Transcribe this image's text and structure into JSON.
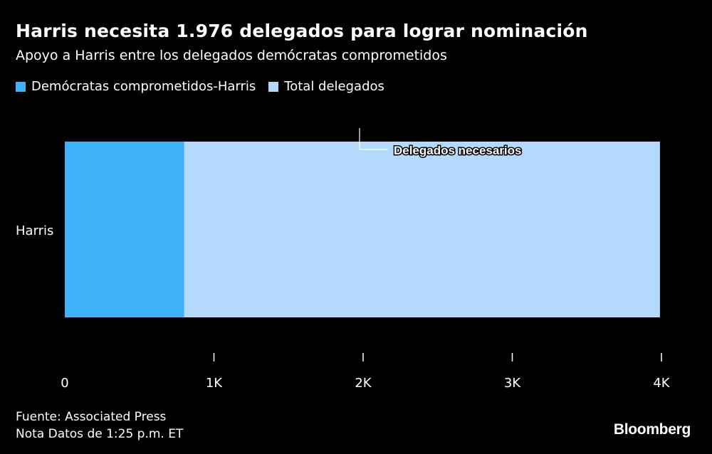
{
  "chart_data": {
    "type": "bar",
    "title": "Harris necesita 1.976 delegados para lograr nominación",
    "subtitle": "Apoyo a Harris entre los delegados demócratas comprometidos",
    "categories": [
      "Harris"
    ],
    "series": [
      {
        "name": "Demócratas comprometidos-Harris",
        "values": [
          800
        ],
        "color": "#3fb3f9"
      },
      {
        "name": "Total delegados",
        "values": [
          3990
        ],
        "color": "#b3dafd"
      }
    ],
    "xlim": [
      0,
      4000
    ],
    "xticks": [
      0,
      1000,
      2000,
      3000,
      4000
    ],
    "xtick_labels": [
      "0",
      "1K",
      "2K",
      "3K",
      "4K"
    ],
    "annotation": {
      "label": "Delegados necesarios",
      "value": 1976
    },
    "legend_position": "top-left",
    "grid": false
  },
  "footer": {
    "source": "Fuente: Associated Press",
    "note": "Nota Datos de 1:25 p.m. ET"
  },
  "brand": "Bloomberg",
  "colors": {
    "background": "#000000",
    "text": "#ffffff"
  }
}
